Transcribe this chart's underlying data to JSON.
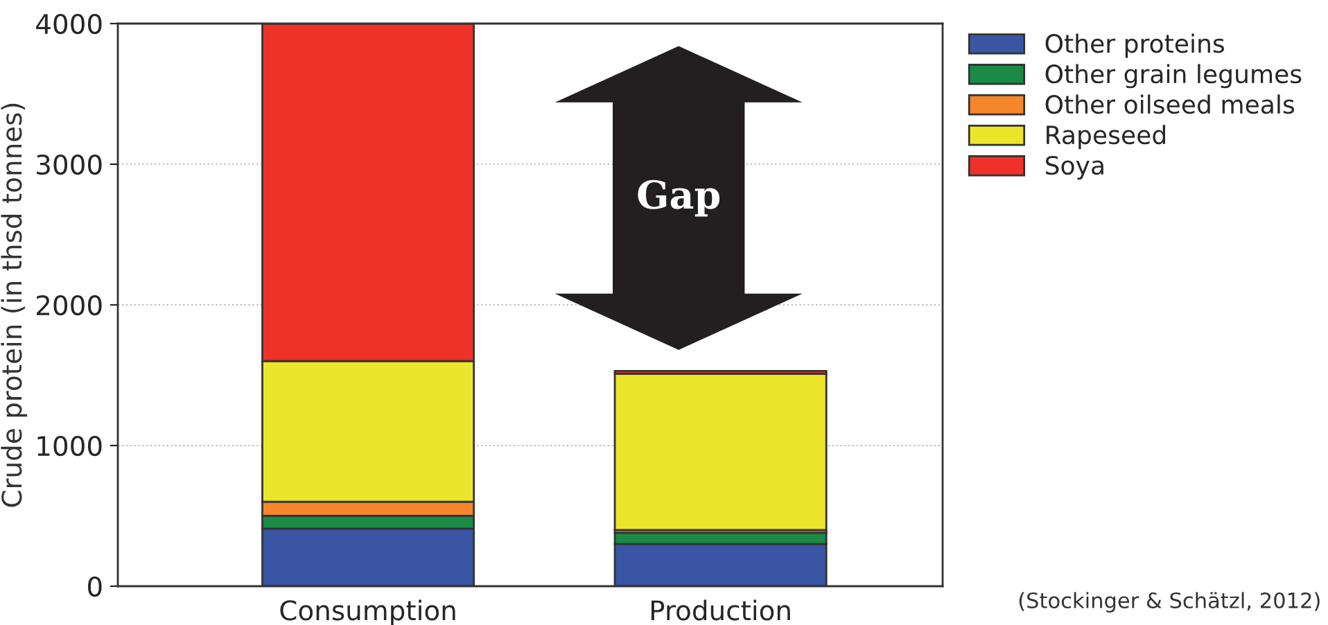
{
  "chart_data": {
    "type": "bar",
    "stacked": true,
    "ylabel": "Crude protein (in thsd tonnes)",
    "categories": [
      "Consumption",
      "Production"
    ],
    "series": [
      {
        "name": "Other proteins",
        "color": "#3a55a4",
        "values": [
          410,
          300
        ]
      },
      {
        "name": "Other grain legumes",
        "color": "#1a8a45",
        "values": [
          90,
          80
        ]
      },
      {
        "name": "Other oilseed meals",
        "color": "#f5862a",
        "values": [
          100,
          20
        ]
      },
      {
        "name": "Rapeseed",
        "color": "#ece62a",
        "values": [
          1000,
          1110
        ]
      },
      {
        "name": "Soya",
        "color": "#ee3129",
        "values": [
          2400,
          20
        ]
      }
    ],
    "ylim": [
      0,
      4000
    ],
    "yticks": [
      0,
      1000,
      2000,
      3000,
      4000
    ],
    "grid": "y",
    "legend": "right",
    "annotations": [
      "Gap",
      "(Stockinger & Schätzl, 2012)"
    ]
  }
}
